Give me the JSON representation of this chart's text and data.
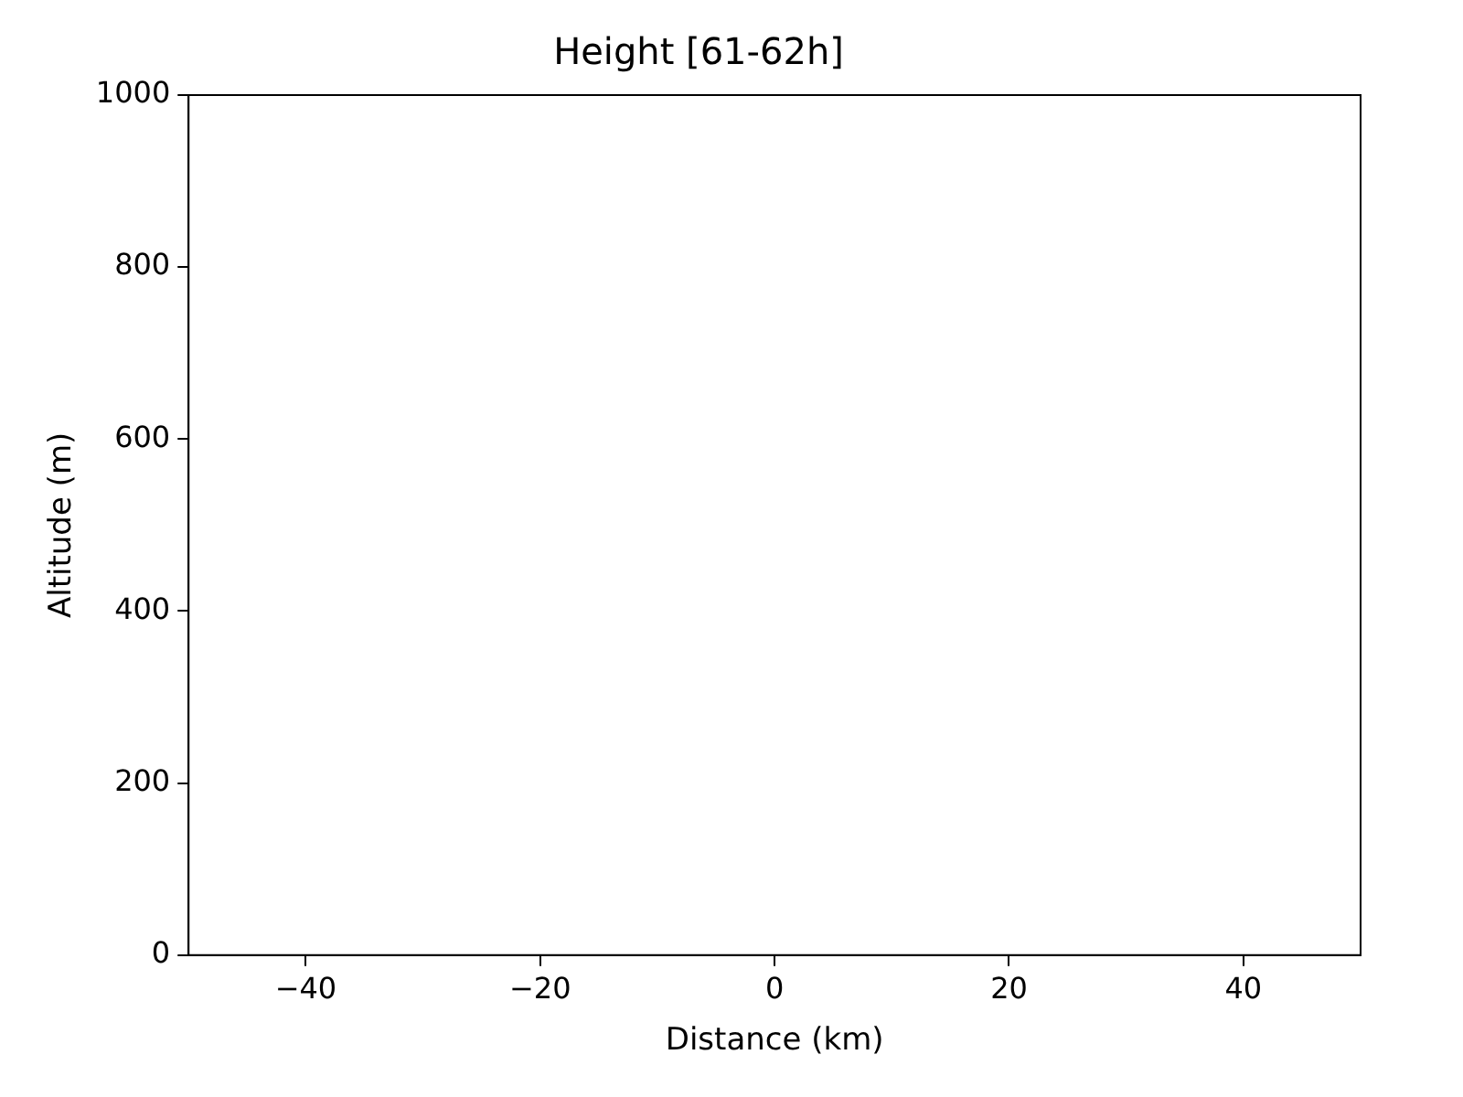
{
  "chart_data": {
    "type": "line",
    "title": "Height [61-62h]",
    "xlabel": "Distance (km)",
    "ylabel": "Altitude (m)",
    "xlim": [
      -50,
      50
    ],
    "xticks": [
      {
        "value": -40,
        "label": "−40"
      },
      {
        "value": -20,
        "label": "−20"
      },
      0,
      20,
      40
    ],
    "ylim": [
      0,
      1000
    ],
    "yticks": [
      0,
      200,
      400,
      600,
      800,
      1000
    ],
    "grid": false,
    "legend": false
  }
}
